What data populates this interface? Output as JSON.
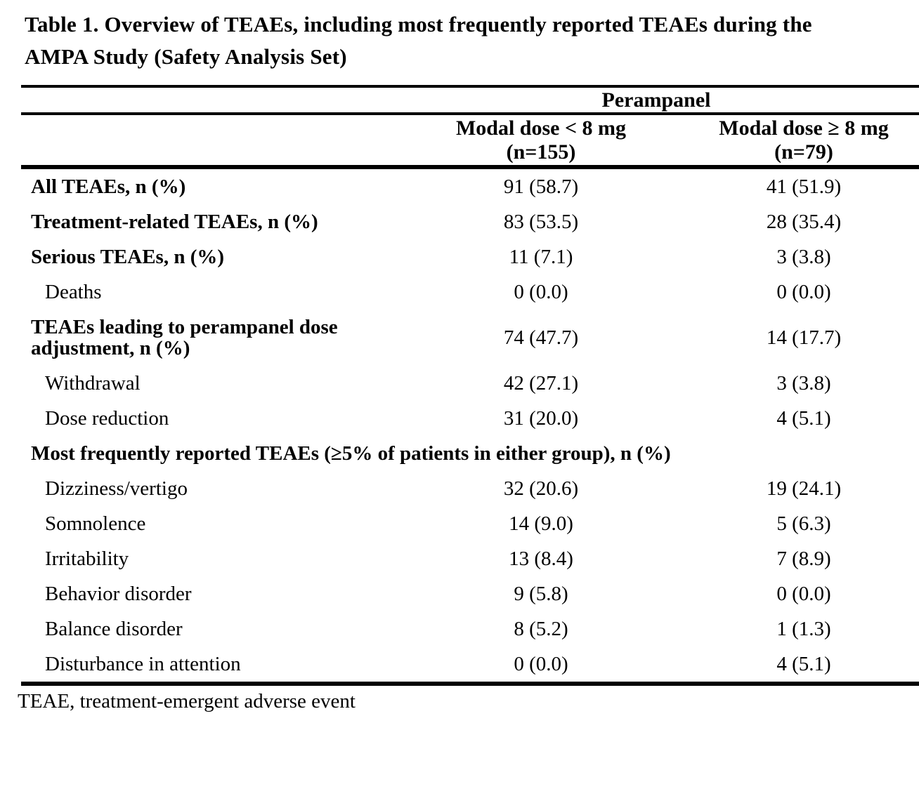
{
  "title": {
    "line1": "Table 1. Overview of TEAEs, including most frequently reported TEAEs during the",
    "line2": "AMPA Study (Safety Analysis Set)"
  },
  "table": {
    "group_header": "Perampanel",
    "columns": [
      {
        "label": "Modal dose < 8 mg",
        "n": "(n=155)"
      },
      {
        "label": "Modal dose ≥ 8 mg",
        "n": "(n=79)"
      }
    ],
    "rows": [
      {
        "label": "All TEAEs, n (%)",
        "values": [
          "91 (58.7)",
          "41 (51.9)"
        ]
      },
      {
        "label": "Treatment-related TEAEs, n (%)",
        "values": [
          "83 (53.5)",
          "28 (35.4)"
        ]
      },
      {
        "label": "Serious TEAEs, n (%)",
        "values": [
          "11 (7.1)",
          "3 (3.8)"
        ]
      },
      {
        "label": "Deaths",
        "values": [
          "0 (0.0)",
          "0 (0.0)"
        ]
      },
      {
        "label": "TEAEs leading to perampanel dose adjustment, n (%)",
        "values": [
          "74 (47.7)",
          "14 (17.7)"
        ]
      },
      {
        "label": "Withdrawal",
        "values": [
          "42 (27.1)",
          "3 (3.8)"
        ]
      },
      {
        "label": "Dose reduction",
        "values": [
          "31 (20.0)",
          "4 (5.1)"
        ]
      },
      {
        "label": "Most frequently reported TEAEs (≥5% of patients in either group), n (%)",
        "values": []
      },
      {
        "label": "Dizziness/vertigo",
        "values": [
          "32 (20.6)",
          "19 (24.1)"
        ]
      },
      {
        "label": "Somnolence",
        "values": [
          "14 (9.0)",
          "5 (6.3)"
        ]
      },
      {
        "label": "Irritability",
        "values": [
          "13 (8.4)",
          "7 (8.9)"
        ]
      },
      {
        "label": "Behavior disorder",
        "values": [
          "9 (5.8)",
          "0 (0.0)"
        ]
      },
      {
        "label": "Balance disorder",
        "values": [
          "8 (5.2)",
          "1 (1.3)"
        ]
      },
      {
        "label": "Disturbance in attention",
        "values": [
          "0 (0.0)",
          "4 (5.1)"
        ]
      }
    ]
  },
  "footnote": "TEAE, treatment-emergent adverse event"
}
